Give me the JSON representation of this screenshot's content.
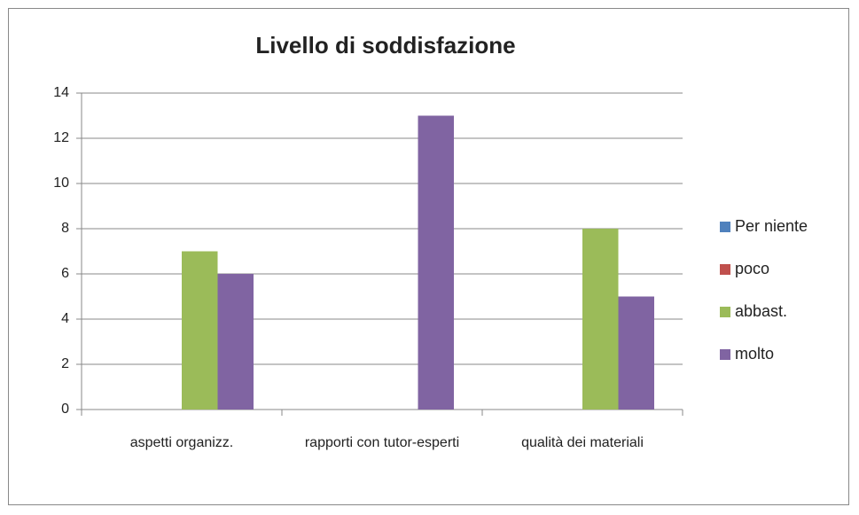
{
  "chart_data": {
    "type": "bar",
    "title": "Livello di soddisfazione",
    "categories": [
      "aspetti organizz.",
      "rapporti con tutor-esperti",
      "qualità dei materiali"
    ],
    "series": [
      {
        "name": "Per niente",
        "color": "#4f81bd",
        "values": [
          0,
          0,
          0
        ]
      },
      {
        "name": "poco",
        "color": "#c0504d",
        "values": [
          0,
          0,
          0
        ]
      },
      {
        "name": "abbast.",
        "color": "#9bbb59",
        "values": [
          7,
          0,
          8
        ]
      },
      {
        "name": "molto",
        "color": "#8064a2",
        "values": [
          6,
          13,
          5
        ]
      }
    ],
    "ylim": [
      0,
      14
    ],
    "yticks": [
      0,
      2,
      4,
      6,
      8,
      10,
      12,
      14
    ],
    "grid": true,
    "legend": "right"
  }
}
